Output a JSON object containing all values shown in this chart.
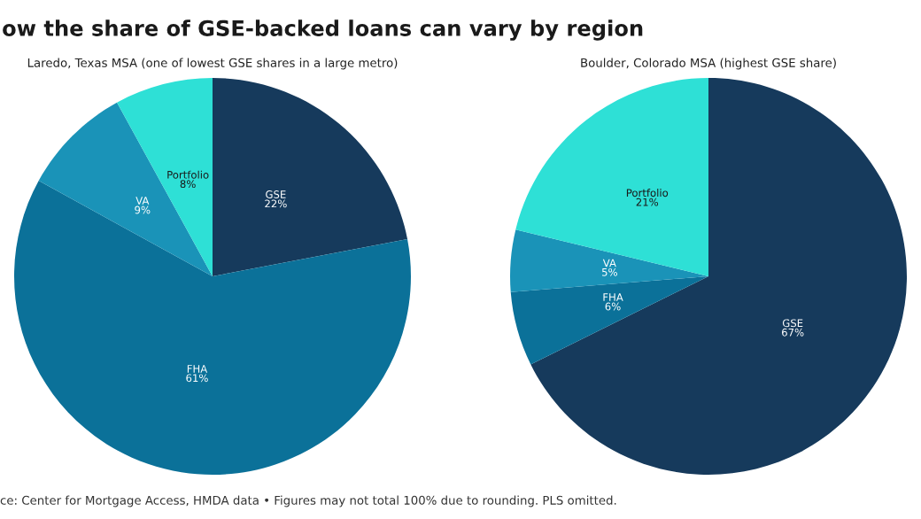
{
  "chart_data": [
    {
      "type": "pie",
      "title": "ow the share of GSE-backed loans can vary by region",
      "subtitle": "Laredo, Texas MSA (one of lowest GSE shares in a large metro)",
      "categories": [
        "GSE",
        "FHA",
        "VA",
        "Portfolio"
      ],
      "values": [
        22,
        61,
        9,
        8
      ],
      "value_labels": [
        "22%",
        "61%",
        "9%",
        "8%"
      ],
      "colors": [
        "#163a5c",
        "#0b7199",
        "#1a93b8",
        "#2ee0d6"
      ],
      "annotations": [
        "ce: Center for Mortgage Access, HMDA data • Figures may not total 100% due to rounding. PLS omitted."
      ]
    },
    {
      "type": "pie",
      "subtitle": "Boulder, Colorado MSA (highest GSE share)",
      "categories": [
        "GSE",
        "FHA",
        "VA",
        "Portfolio"
      ],
      "values": [
        67,
        6,
        5,
        21
      ],
      "value_labels": [
        "67%",
        "6%",
        "5%",
        "21%"
      ],
      "colors": [
        "#163a5c",
        "#0b7199",
        "#1a93b8",
        "#2ee0d6"
      ]
    }
  ]
}
